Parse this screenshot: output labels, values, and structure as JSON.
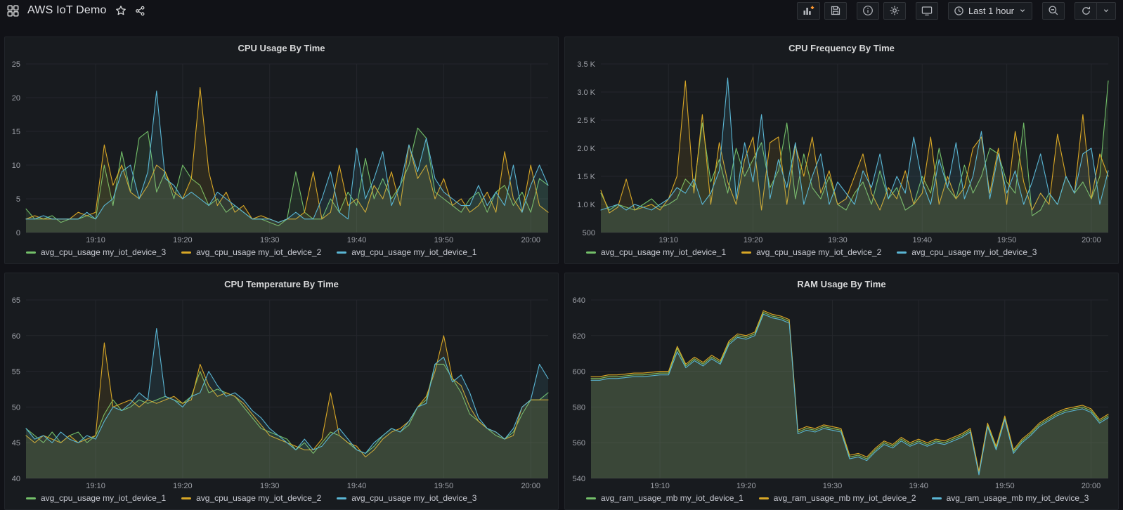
{
  "header": {
    "title": "AWS IoT Demo",
    "icons": [
      "dashboard-grid",
      "star",
      "share"
    ]
  },
  "toolbar": {
    "time_range_label": "Last 1 hour",
    "icons": [
      "add-panel",
      "save-dashboard",
      "dashboard-insights",
      "dashboard-settings",
      "tv-mode",
      "clock",
      "chevron-down",
      "zoom-out",
      "refresh",
      "refresh-interval-chevron"
    ]
  },
  "colors": {
    "background": "#111217",
    "panel_bg": "#181B1F",
    "panel_border": "#22252B",
    "grid": "#24262C",
    "text": "#D8D9DA",
    "muted_text": "#9DA0A7",
    "accent_orange": "#FF9830",
    "series_green": "#73BF69",
    "series_yellow": "#D8A726",
    "series_cyan": "#5AB6D4"
  },
  "chart_data": [
    {
      "id": "cpu-usage",
      "type": "line",
      "title": "CPU Usage By Time",
      "xlabel": "",
      "ylabel": "",
      "x_start": "19:02",
      "x_interval_minutes": 1,
      "x_tick_labels": [
        "19:10",
        "19:20",
        "19:30",
        "19:40",
        "19:50",
        "20:00"
      ],
      "x_tick_indices": [
        8,
        18,
        28,
        38,
        48,
        58
      ],
      "ylim": [
        0,
        25
      ],
      "y_ticks": [
        0,
        5,
        10,
        15,
        20,
        25
      ],
      "y_tick_labels": [
        "0",
        "5",
        "10",
        "15",
        "20",
        "25"
      ],
      "grid": true,
      "legend_position": "bottom",
      "fill_opacity": 0.11,
      "series": [
        {
          "name": "avg_cpu_usage my_iot_device_3",
          "color": "#73BF69",
          "values": [
            3.5,
            2,
            2,
            2.5,
            1.5,
            2,
            2,
            2.5,
            2,
            10,
            4,
            12,
            6,
            14,
            15,
            6,
            9,
            5,
            10,
            8,
            7,
            4,
            5,
            3,
            4,
            3,
            2,
            2,
            1.5,
            1,
            2,
            9,
            3,
            2,
            2,
            5,
            3,
            6,
            4,
            11,
            5,
            8,
            5,
            7,
            10,
            15.5,
            14,
            6,
            5,
            4,
            3,
            5,
            6,
            3,
            6,
            7,
            4,
            6,
            3,
            8,
            7
          ]
        },
        {
          "name": "avg_cpu_usage my_iot_device_2",
          "color": "#D8A726",
          "values": [
            2,
            2.5,
            2,
            2,
            2,
            2,
            3,
            2.5,
            3,
            13,
            7,
            10,
            6,
            5,
            7,
            10,
            9,
            6,
            5,
            8,
            21.5,
            9,
            4,
            6,
            3,
            4,
            2,
            2.5,
            2,
            1.5,
            2,
            2,
            3,
            9,
            2,
            3,
            10,
            4,
            5,
            3,
            7,
            5,
            9,
            4,
            13,
            8,
            10,
            5,
            8,
            4,
            5,
            3,
            4,
            6,
            3,
            12,
            5,
            3,
            10,
            4,
            3
          ]
        },
        {
          "name": "avg_cpu_usage my_iot_device_1",
          "color": "#5AB6D4",
          "values": [
            2,
            2,
            2.5,
            2,
            2,
            2,
            2,
            3,
            2,
            4,
            5,
            9,
            10,
            5,
            9,
            21,
            8,
            7,
            5,
            6,
            5,
            4,
            6,
            5,
            4,
            3,
            2,
            2,
            2,
            1.5,
            2,
            3,
            2,
            2,
            5,
            9,
            3,
            2,
            12.5,
            5,
            8,
            12,
            4,
            7,
            13,
            9,
            14,
            8,
            6,
            5,
            4,
            4,
            7,
            4,
            6,
            4,
            10,
            3,
            7,
            10,
            7
          ]
        }
      ]
    },
    {
      "id": "cpu-frequency",
      "type": "line",
      "title": "CPU Frequency By Time",
      "xlabel": "",
      "ylabel": "",
      "x_start": "19:02",
      "x_interval_minutes": 1,
      "x_tick_labels": [
        "19:10",
        "19:20",
        "19:30",
        "19:40",
        "19:50",
        "20:00"
      ],
      "x_tick_indices": [
        8,
        18,
        28,
        38,
        48,
        58
      ],
      "ylim": [
        500,
        3500
      ],
      "y_ticks": [
        500,
        1000,
        1500,
        2000,
        2500,
        3000,
        3500
      ],
      "y_tick_labels": [
        "500",
        "1.0 K",
        "1.5 K",
        "2.0 K",
        "2.5 K",
        "3.0 K",
        "3.5 K"
      ],
      "grid": true,
      "legend_position": "bottom",
      "fill_opacity": 0.11,
      "series": [
        {
          "name": "avg_cpu_usage my_iot_device_1",
          "color": "#73BF69",
          "values": [
            1200,
            900,
            1000,
            950,
            900,
            1000,
            1100,
            950,
            1000,
            1100,
            1450,
            1300,
            2450,
            1400,
            1800,
            1200,
            2000,
            1500,
            1800,
            2100,
            1300,
            1600,
            2450,
            1100,
            1900,
            1300,
            1100,
            1500,
            1000,
            900,
            1200,
            1400,
            1000,
            1600,
            1100,
            1300,
            900,
            1000,
            1500,
            1200,
            2000,
            1300,
            1100,
            1700,
            1200,
            1500,
            2000,
            1900,
            1400,
            1200,
            2450,
            800,
            900,
            1200,
            1000,
            1500,
            1200,
            1400,
            1100,
            1500,
            3200
          ]
        },
        {
          "name": "avg_cpu_usage my_iot_device_2",
          "color": "#D8A726",
          "values": [
            1250,
            850,
            950,
            1450,
            900,
            950,
            1000,
            900,
            1100,
            1500,
            3200,
            1200,
            2600,
            1000,
            2100,
            1400,
            1000,
            1800,
            2200,
            900,
            2100,
            2200,
            1000,
            2050,
            1500,
            2200,
            1200,
            1600,
            1000,
            1100,
            1500,
            1900,
            1200,
            900,
            1300,
            1100,
            1600,
            1000,
            1200,
            2200,
            1000,
            1500,
            1100,
            1300,
            2000,
            2200,
            1200,
            2000,
            1000,
            2300,
            1400,
            900,
            1200,
            1000,
            2250,
            1500,
            1200,
            2600,
            1100,
            1900,
            1500
          ]
        },
        {
          "name": "avg_cpu_usage my_iot_device_3",
          "color": "#5AB6D4",
          "values": [
            900,
            950,
            1000,
            900,
            1000,
            950,
            900,
            1000,
            1100,
            1300,
            1200,
            1450,
            1000,
            1200,
            1600,
            3250,
            1100,
            2100,
            1400,
            2600,
            1100,
            1800,
            1300,
            2100,
            1000,
            1500,
            1900,
            1000,
            1400,
            1200,
            1000,
            1600,
            1300,
            1900,
            1100,
            1500,
            1200,
            2200,
            1400,
            1000,
            1800,
            1300,
            2100,
            1100,
            1500,
            2300,
            1100,
            1900,
            1200,
            1600,
            1000,
            1400,
            1900,
            1200,
            1000,
            1500,
            1200,
            1900,
            2000,
            1000,
            1600
          ]
        }
      ]
    },
    {
      "id": "cpu-temperature",
      "type": "line",
      "title": "CPU Temperature By Time",
      "xlabel": "",
      "ylabel": "",
      "x_start": "19:02",
      "x_interval_minutes": 1,
      "x_tick_labels": [
        "19:10",
        "19:20",
        "19:30",
        "19:40",
        "19:50",
        "20:00"
      ],
      "x_tick_indices": [
        8,
        18,
        28,
        38,
        48,
        58
      ],
      "ylim": [
        40,
        65
      ],
      "y_ticks": [
        40,
        45,
        50,
        55,
        60,
        65
      ],
      "y_tick_labels": [
        "40",
        "45",
        "50",
        "55",
        "60",
        "65"
      ],
      "grid": true,
      "legend_position": "bottom",
      "fill_opacity": 0.11,
      "series": [
        {
          "name": "avg_cpu_usage my_iot_device_1",
          "color": "#73BF69",
          "values": [
            47,
            46,
            45,
            46.5,
            45,
            46,
            46.5,
            45,
            46,
            49,
            51,
            49.5,
            50,
            51,
            50.5,
            51,
            51.5,
            51,
            50.5,
            51.5,
            55,
            52,
            52.5,
            52,
            51.5,
            50,
            48.5,
            47,
            46.5,
            46,
            45.5,
            44,
            45,
            43.5,
            45,
            46.5,
            46,
            45,
            44,
            43.5,
            44.5,
            46,
            47,
            46.5,
            47.5,
            50,
            51,
            56,
            56,
            54,
            52,
            49,
            48,
            47,
            46,
            45.5,
            46.5,
            49,
            51,
            51,
            52
          ]
        },
        {
          "name": "avg_cpu_usage my_iot_device_2",
          "color": "#D8A726",
          "values": [
            46,
            45,
            46,
            45.5,
            45,
            46,
            45,
            45.5,
            46,
            59,
            50,
            50.5,
            51,
            50,
            51,
            50.5,
            51,
            51.5,
            50.5,
            51,
            56,
            53,
            51.5,
            52,
            51.5,
            50.5,
            49,
            47.5,
            46,
            45.5,
            45,
            44.5,
            44,
            44,
            45.5,
            52,
            46,
            45,
            44.5,
            43,
            44,
            45.5,
            46.5,
            47,
            48,
            50,
            51.5,
            55,
            60,
            54,
            53,
            50,
            48,
            47,
            46.5,
            45.5,
            46,
            50,
            51,
            51,
            51
          ]
        },
        {
          "name": "avg_cpu_usage my_iot_device_3",
          "color": "#5AB6D4",
          "values": [
            47,
            45.5,
            46,
            45,
            46.5,
            45.5,
            45,
            46,
            45.5,
            48,
            50,
            49.5,
            50.5,
            52,
            51,
            61,
            51.5,
            51,
            50,
            51.5,
            52,
            55,
            53,
            51.5,
            52,
            51,
            49.5,
            48.5,
            47,
            46,
            45,
            44,
            45.5,
            44,
            44.5,
            46,
            47,
            45.5,
            44,
            43.5,
            45,
            46,
            47,
            46.5,
            48,
            50,
            50.5,
            56,
            57,
            53.5,
            54.5,
            52,
            48.5,
            47,
            46.5,
            45.5,
            47,
            50,
            51,
            56,
            54
          ]
        }
      ]
    },
    {
      "id": "ram-usage",
      "type": "line",
      "title": "RAM Usage By Time",
      "xlabel": "",
      "ylabel": "",
      "x_start": "19:02",
      "x_interval_minutes": 1,
      "x_tick_labels": [
        "19:10",
        "19:20",
        "19:30",
        "19:40",
        "19:50",
        "20:00"
      ],
      "x_tick_indices": [
        8,
        18,
        28,
        38,
        48,
        58
      ],
      "ylim": [
        540,
        640
      ],
      "y_ticks": [
        540,
        560,
        580,
        600,
        620,
        640
      ],
      "y_tick_labels": [
        "540",
        "560",
        "580",
        "600",
        "620",
        "640"
      ],
      "grid": true,
      "legend_position": "bottom",
      "fill_opacity": 0.11,
      "series": [
        {
          "name": "avg_ram_usage_mb my_iot_device_1",
          "color": "#73BF69",
          "values": [
            596,
            596,
            597,
            597,
            597.5,
            598,
            598,
            598.5,
            599,
            599,
            613,
            603,
            607,
            604,
            608,
            605,
            616,
            620,
            619,
            621,
            633,
            631,
            630,
            628,
            566,
            568,
            567,
            569,
            568,
            567,
            552,
            553,
            551,
            556,
            560,
            558,
            562,
            559,
            561,
            559,
            561,
            560,
            562,
            564,
            567,
            543,
            570,
            557,
            574,
            555,
            561,
            565,
            570,
            573,
            576,
            578,
            579,
            580,
            578,
            572,
            575
          ]
        },
        {
          "name": "avg_ram_usage_mb my_iot_device_2",
          "color": "#D8A726",
          "values": [
            597,
            597,
            598,
            598,
            598.5,
            599,
            599,
            599.5,
            600,
            600,
            614,
            604,
            608,
            605,
            609,
            606,
            617,
            621,
            620,
            622,
            634,
            632,
            631,
            629,
            567,
            569,
            568,
            570,
            569,
            568,
            553,
            554,
            552,
            557,
            561,
            559,
            563,
            560,
            562,
            560,
            562,
            561,
            563,
            565,
            568,
            544,
            571,
            558,
            575,
            556,
            562,
            566,
            571,
            574,
            577,
            579,
            580,
            581,
            579,
            573,
            576
          ]
        },
        {
          "name": "avg_ram_usage_mb my_iot_device_3",
          "color": "#5AB6D4",
          "values": [
            595,
            595,
            596,
            596,
            596.5,
            597,
            597,
            597.5,
            598,
            598,
            611,
            602,
            606,
            603,
            607,
            604,
            615,
            619,
            618,
            620,
            632,
            630,
            629,
            627,
            565,
            567,
            566,
            568,
            567,
            566,
            551,
            552,
            550,
            555,
            559,
            557,
            561,
            558,
            560,
            558,
            560,
            559,
            561,
            563,
            566,
            542,
            569,
            556,
            573,
            554,
            560,
            564,
            569,
            572,
            575,
            577,
            578,
            579,
            577,
            571,
            574
          ]
        }
      ]
    }
  ]
}
